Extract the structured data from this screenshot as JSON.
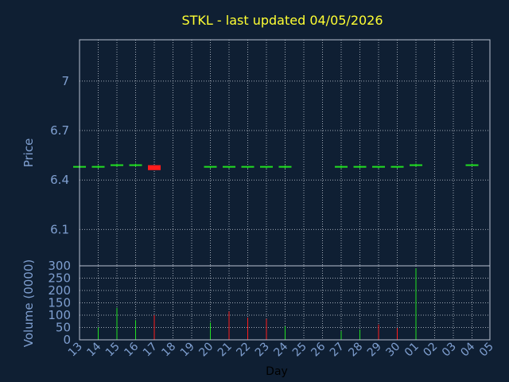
{
  "chart_data": {
    "type": "candlestick",
    "title": "STKL - last updated 04/05/2026",
    "xlabel": "Day",
    "price_panel": {
      "ylabel": "Price",
      "ylim": [
        5.88,
        7.25
      ],
      "yticks": [
        6.1,
        6.4,
        6.7,
        7
      ],
      "ytick_labels": [
        "6.1",
        "6.4",
        "6.7",
        "7"
      ],
      "grid": true
    },
    "volume_panel": {
      "ylabel": "Volume (0000)",
      "ylim": [
        0,
        300
      ],
      "yticks": [
        0,
        50,
        100,
        150,
        200,
        250,
        300
      ],
      "ytick_labels": [
        "0",
        "50",
        "100",
        "150",
        "200",
        "250",
        "300"
      ],
      "grid": true
    },
    "x_labels": [
      "13",
      "14",
      "15",
      "16",
      "17",
      "18",
      "19",
      "20",
      "21",
      "22",
      "23",
      "24",
      "25",
      "26",
      "27",
      "28",
      "29",
      "30",
      "01",
      "02",
      "03",
      "04",
      "05"
    ],
    "candles": [
      {
        "x": 0,
        "open": 6.48,
        "close": 6.48,
        "high": 6.49,
        "low": 6.47
      },
      {
        "x": 1,
        "open": 6.48,
        "close": 6.48,
        "high": 6.49,
        "low": 6.47
      },
      {
        "x": 2,
        "open": 6.49,
        "close": 6.49,
        "high": 6.5,
        "low": 6.48
      },
      {
        "x": 3,
        "open": 6.49,
        "close": 6.49,
        "high": 6.5,
        "low": 6.48
      },
      {
        "x": 4,
        "open": 6.49,
        "close": 6.46,
        "high": 6.49,
        "low": 6.46
      },
      {
        "x": 7,
        "open": 6.48,
        "close": 6.48,
        "high": 6.48,
        "low": 6.47
      },
      {
        "x": 8,
        "open": 6.48,
        "close": 6.48,
        "high": 6.48,
        "low": 6.47
      },
      {
        "x": 9,
        "open": 6.48,
        "close": 6.48,
        "high": 6.48,
        "low": 6.47
      },
      {
        "x": 10,
        "open": 6.48,
        "close": 6.48,
        "high": 6.48,
        "low": 6.47
      },
      {
        "x": 11,
        "open": 6.48,
        "close": 6.48,
        "high": 6.49,
        "low": 6.47
      },
      {
        "x": 14,
        "open": 6.48,
        "close": 6.48,
        "high": 6.49,
        "low": 6.47
      },
      {
        "x": 15,
        "open": 6.48,
        "close": 6.48,
        "high": 6.49,
        "low": 6.47
      },
      {
        "x": 16,
        "open": 6.48,
        "close": 6.48,
        "high": 6.48,
        "low": 6.47
      },
      {
        "x": 17,
        "open": 6.48,
        "close": 6.48,
        "high": 6.48,
        "low": 6.47
      },
      {
        "x": 18,
        "open": 6.49,
        "close": 6.49,
        "high": 6.5,
        "low": 6.48
      },
      {
        "x": 21,
        "open": 6.49,
        "close": 6.49,
        "high": 6.5,
        "low": 6.49
      }
    ],
    "volumes": [
      {
        "x": 0,
        "value": 0,
        "up": true
      },
      {
        "x": 1,
        "value": 50,
        "up": true
      },
      {
        "x": 2,
        "value": 130,
        "up": true
      },
      {
        "x": 3,
        "value": 80,
        "up": true
      },
      {
        "x": 4,
        "value": 100,
        "up": false
      },
      {
        "x": 7,
        "value": 70,
        "up": true
      },
      {
        "x": 8,
        "value": 115,
        "up": false
      },
      {
        "x": 9,
        "value": 90,
        "up": false
      },
      {
        "x": 10,
        "value": 85,
        "up": false
      },
      {
        "x": 11,
        "value": 55,
        "up": true
      },
      {
        "x": 14,
        "value": 35,
        "up": true
      },
      {
        "x": 15,
        "value": 42,
        "up": true
      },
      {
        "x": 16,
        "value": 62,
        "up": false
      },
      {
        "x": 17,
        "value": 48,
        "up": false
      },
      {
        "x": 18,
        "value": 290,
        "up": true
      },
      {
        "x": 21,
        "value": 0,
        "up": true
      }
    ],
    "colors": {
      "background": "#0f1f33",
      "frame": "#b8c2d0",
      "grid": "#cfd6df",
      "title": "#ffff33",
      "axis_text": "#7f9fd0",
      "up": "#22e022",
      "down": "#ff1c1c"
    }
  }
}
